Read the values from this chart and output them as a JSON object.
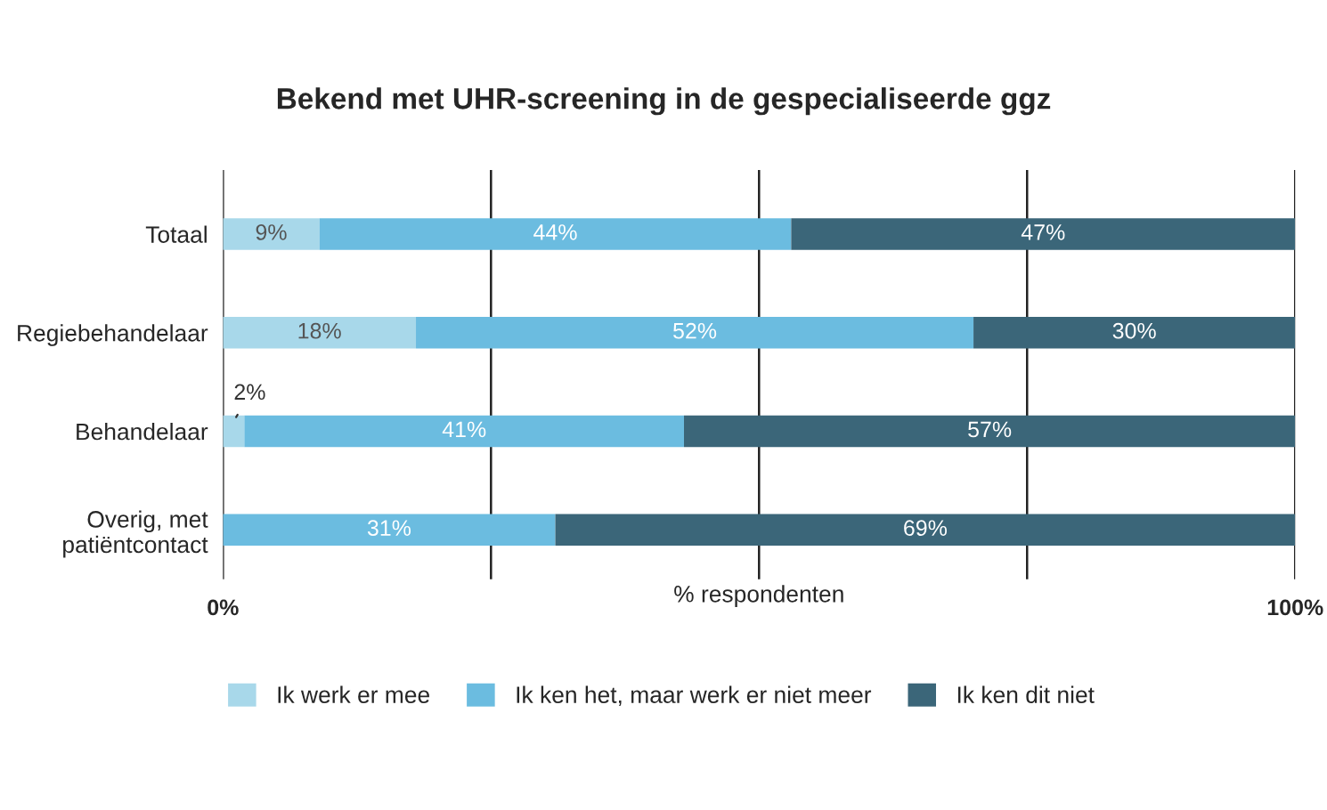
{
  "chart_data": {
    "type": "bar",
    "orientation": "horizontal",
    "stacked": true,
    "title": "Bekend met UHR-screening in de gespecialiseerde ggz",
    "xlabel": "% respondenten",
    "categories": [
      "Totaal",
      "Regiebehandelaar",
      "Behandelaar",
      "Overig, met\npatiëntcontact"
    ],
    "series": [
      {
        "name": "Ik werk er mee",
        "color": "#a8d8ea",
        "values": [
          9,
          18,
          2,
          null
        ],
        "value_labels": [
          "9%",
          "18%",
          "2%",
          null
        ]
      },
      {
        "name": "Ik ken het, maar werk er niet meer",
        "color": "#6bbce0",
        "values": [
          44,
          52,
          41,
          31
        ],
        "value_labels": [
          "44%",
          "52%",
          "41%",
          "31%"
        ]
      },
      {
        "name": "Ik ken dit niet",
        "color": "#3b6679",
        "values": [
          47,
          30,
          57,
          69
        ],
        "value_labels": [
          "47%",
          "30%",
          "57%",
          "69%"
        ]
      }
    ],
    "xlim": [
      0,
      100
    ],
    "xticks": [
      {
        "value": 0,
        "label": "0%"
      },
      {
        "value": 25,
        "label": null
      },
      {
        "value": 50,
        "label": null
      },
      {
        "value": 75,
        "label": null
      },
      {
        "value": 100,
        "label": "100%"
      }
    ],
    "grid": "x",
    "legend": "bottom left"
  }
}
